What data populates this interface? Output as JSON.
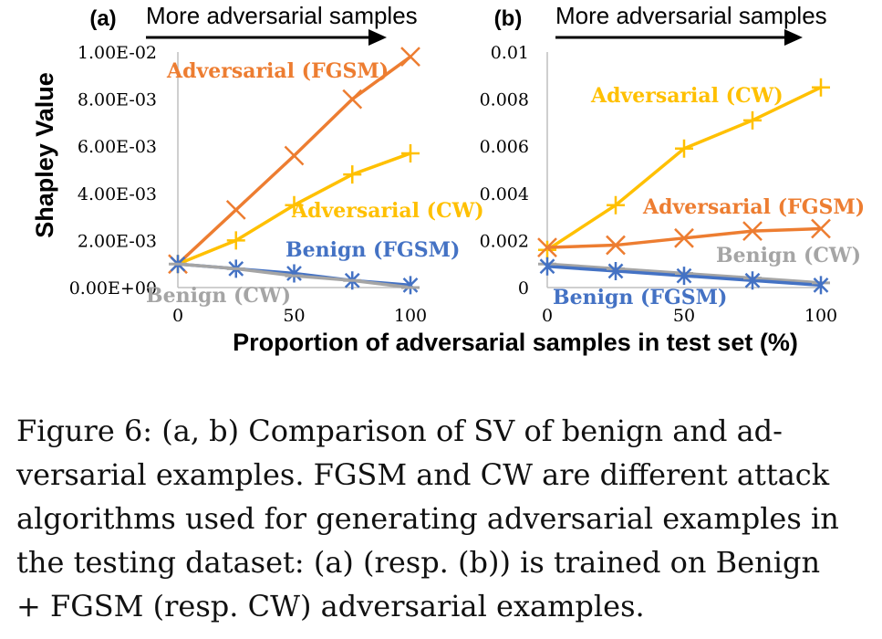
{
  "figure": {
    "ylabel": "Shapley Value",
    "xlabel": "Proportion of adversarial samples in test set (%)",
    "caption_lines": [
      "Figure 6: (a, b) Comparison of SV of benign and ad-",
      "versarial examples. FGSM and CW are different attack",
      "algorithms used for generating adversarial examples in",
      "the testing dataset: (a) (resp. (b)) is trained on Benign",
      "+ FGSM (resp. CW) adversarial examples."
    ]
  },
  "colors": {
    "adv_fgsm": "#ED7D31",
    "adv_cw": "#FFC000",
    "benign_fgsm": "#4472C4",
    "benign_cw": "#A5A5A5",
    "axis": "#BFBFBF",
    "arrow": "#000000"
  },
  "chart_data": [
    {
      "type": "line",
      "panel_label": "(a)",
      "arrow_label": "More adversarial samples",
      "xlabel": "Proportion of adversarial samples in test set (%)",
      "ylabel": "Shapley Value",
      "x_ticks": [
        "0",
        "50",
        "100"
      ],
      "y_ticks": [
        "0.00E+00",
        "2.00E-03",
        "4.00E-03",
        "6.00E-03",
        "8.00E-03",
        "1.00E-02"
      ],
      "xlim": [
        0,
        100
      ],
      "ylim": [
        0,
        0.01
      ],
      "x": [
        0,
        25,
        50,
        75,
        100
      ],
      "series": [
        {
          "name": "Adversarial (FGSM)",
          "key": "adv_fgsm",
          "marker": "x",
          "values": [
            0.001,
            0.0033,
            0.0056,
            0.008,
            0.0098
          ]
        },
        {
          "name": "Adversarial (CW)",
          "key": "adv_cw",
          "marker": "+",
          "values": [
            0.001,
            0.002,
            0.0035,
            0.0048,
            0.0057
          ]
        },
        {
          "name": "Benign (FGSM)",
          "key": "benign_fgsm",
          "marker": "*",
          "values": [
            0.001,
            0.0008,
            0.0006,
            0.0003,
            0.0001
          ]
        },
        {
          "name": "Benign (CW)",
          "key": "benign_cw",
          "marker": "-",
          "values": [
            0.001,
            0.0008,
            0.0005,
            0.0003,
            0.0
          ]
        }
      ],
      "grid": false
    },
    {
      "type": "line",
      "panel_label": "(b)",
      "arrow_label": "More adversarial samples",
      "xlabel": "Proportion of adversarial samples in test set (%)",
      "ylabel": "Shapley Value",
      "x_ticks": [
        "0",
        "50",
        "100"
      ],
      "y_ticks": [
        "0",
        "0.002",
        "0.004",
        "0.006",
        "0.008",
        "0.01"
      ],
      "xlim": [
        0,
        100
      ],
      "ylim": [
        0,
        0.01
      ],
      "x": [
        0,
        25,
        50,
        75,
        100
      ],
      "series": [
        {
          "name": "Adversarial (CW)",
          "key": "adv_cw",
          "marker": "+",
          "values": [
            0.0016,
            0.0035,
            0.0059,
            0.0071,
            0.0085
          ]
        },
        {
          "name": "Adversarial (FGSM)",
          "key": "adv_fgsm",
          "marker": "x",
          "values": [
            0.0017,
            0.0018,
            0.0021,
            0.0024,
            0.0025
          ]
        },
        {
          "name": "Benign (CW)",
          "key": "benign_cw",
          "marker": "-",
          "values": [
            0.001,
            0.0008,
            0.0006,
            0.0004,
            0.0002
          ]
        },
        {
          "name": "Benign (FGSM)",
          "key": "benign_fgsm",
          "marker": "*",
          "values": [
            0.0009,
            0.0007,
            0.0005,
            0.0003,
            0.0001
          ]
        }
      ],
      "grid": false
    }
  ]
}
